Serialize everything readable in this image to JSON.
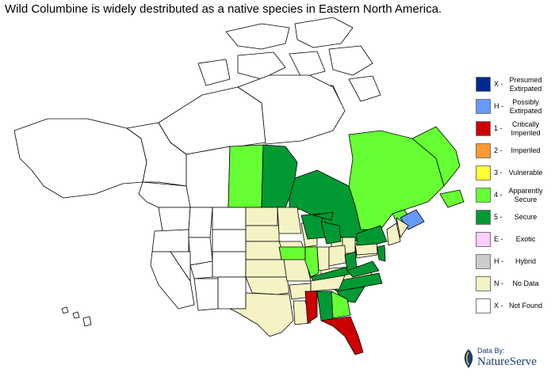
{
  "title": "Wild Columbine is widely destributed as a native species in Eastern North America.",
  "colors": {
    "presumed_extirpated": "#002a91",
    "possibly_extirpated": "#6699ff",
    "critically_imperiled": "#cc0000",
    "imperiled": "#ff9933",
    "vulnerable": "#ffff33",
    "apparently_secure": "#66ff33",
    "secure": "#009933",
    "exotic": "#ffccff",
    "hybrid": "#cccccc",
    "no_data": "#f5f2c4",
    "not_found": "#ffffff"
  },
  "legend": [
    {
      "code": "X -",
      "label": "Presumed Extirpated",
      "color": "#002a91"
    },
    {
      "code": "H -",
      "label": "Possibly Extirpated",
      "color": "#6699ff"
    },
    {
      "code": "1 -",
      "label": "Critically Imperiled",
      "color": "#cc0000"
    },
    {
      "code": "2 -",
      "label": "Imperiled",
      "color": "#ff9933"
    },
    {
      "code": "3 -",
      "label": "Vulnerable",
      "color": "#ffff33"
    },
    {
      "code": "4 -",
      "label": "Apparently Secure",
      "color": "#66ff33"
    },
    {
      "code": "5 -",
      "label": "Secure",
      "color": "#009933"
    },
    {
      "code": "E -",
      "label": "Exotic",
      "color": "#ffccff"
    },
    {
      "code": "H -",
      "label": "Hybrid",
      "color": "#cccccc"
    },
    {
      "code": "N -",
      "label": "No Data",
      "color": "#f5f2c4"
    },
    {
      "code": "X -",
      "label": "Not Found",
      "color": "#ffffff"
    }
  ],
  "credit": {
    "by": "Data By:",
    "org": "NatureServe",
    "logo_icon": "natureserve-leaf-icon"
  }
}
